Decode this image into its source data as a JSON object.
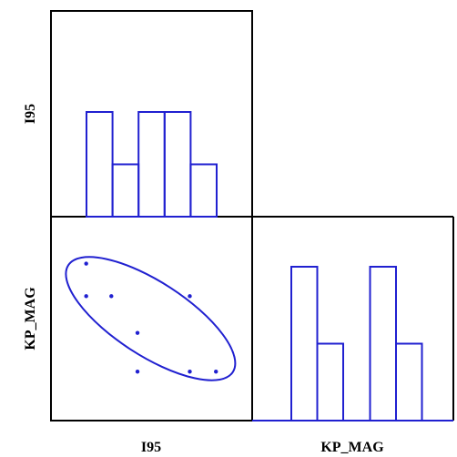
{
  "chart_data": {
    "type": "scatter-matrix",
    "variables": [
      "I95",
      "KP_MAG"
    ],
    "color": "#2020d0",
    "frame_color": "#000000",
    "panels": [
      {
        "position": "top-left",
        "type": "histogram",
        "variable": "I95",
        "relative_heights": [
          1.0,
          0.5,
          1.0,
          1.0,
          0.5
        ]
      },
      {
        "position": "bottom-right",
        "type": "histogram",
        "variable": "KP_MAG",
        "relative_heights": [
          1.0,
          0.5,
          1.0,
          0.5
        ]
      },
      {
        "position": "bottom-left",
        "type": "scatter",
        "x_variable": "I95",
        "y_variable": "KP_MAG",
        "x_range": [
          0,
          1
        ],
        "y_range": [
          0,
          1
        ],
        "points": [
          {
            "x": 0.175,
            "y": 0.77
          },
          {
            "x": 0.175,
            "y": 0.61
          },
          {
            "x": 0.3,
            "y": 0.61
          },
          {
            "x": 0.43,
            "y": 0.43
          },
          {
            "x": 0.43,
            "y": 0.24
          },
          {
            "x": 0.69,
            "y": 0.61
          },
          {
            "x": 0.69,
            "y": 0.24
          },
          {
            "x": 0.82,
            "y": 0.24
          }
        ],
        "ellipse": {
          "cx": 0.495,
          "cy": 0.5,
          "rx": 0.65,
          "ry": 0.24,
          "angle_deg": 33
        }
      }
    ],
    "labels": {
      "x_left": "I95",
      "x_right": "KP_MAG",
      "y_top": "I95",
      "y_bottom": "KP_MAG"
    }
  }
}
